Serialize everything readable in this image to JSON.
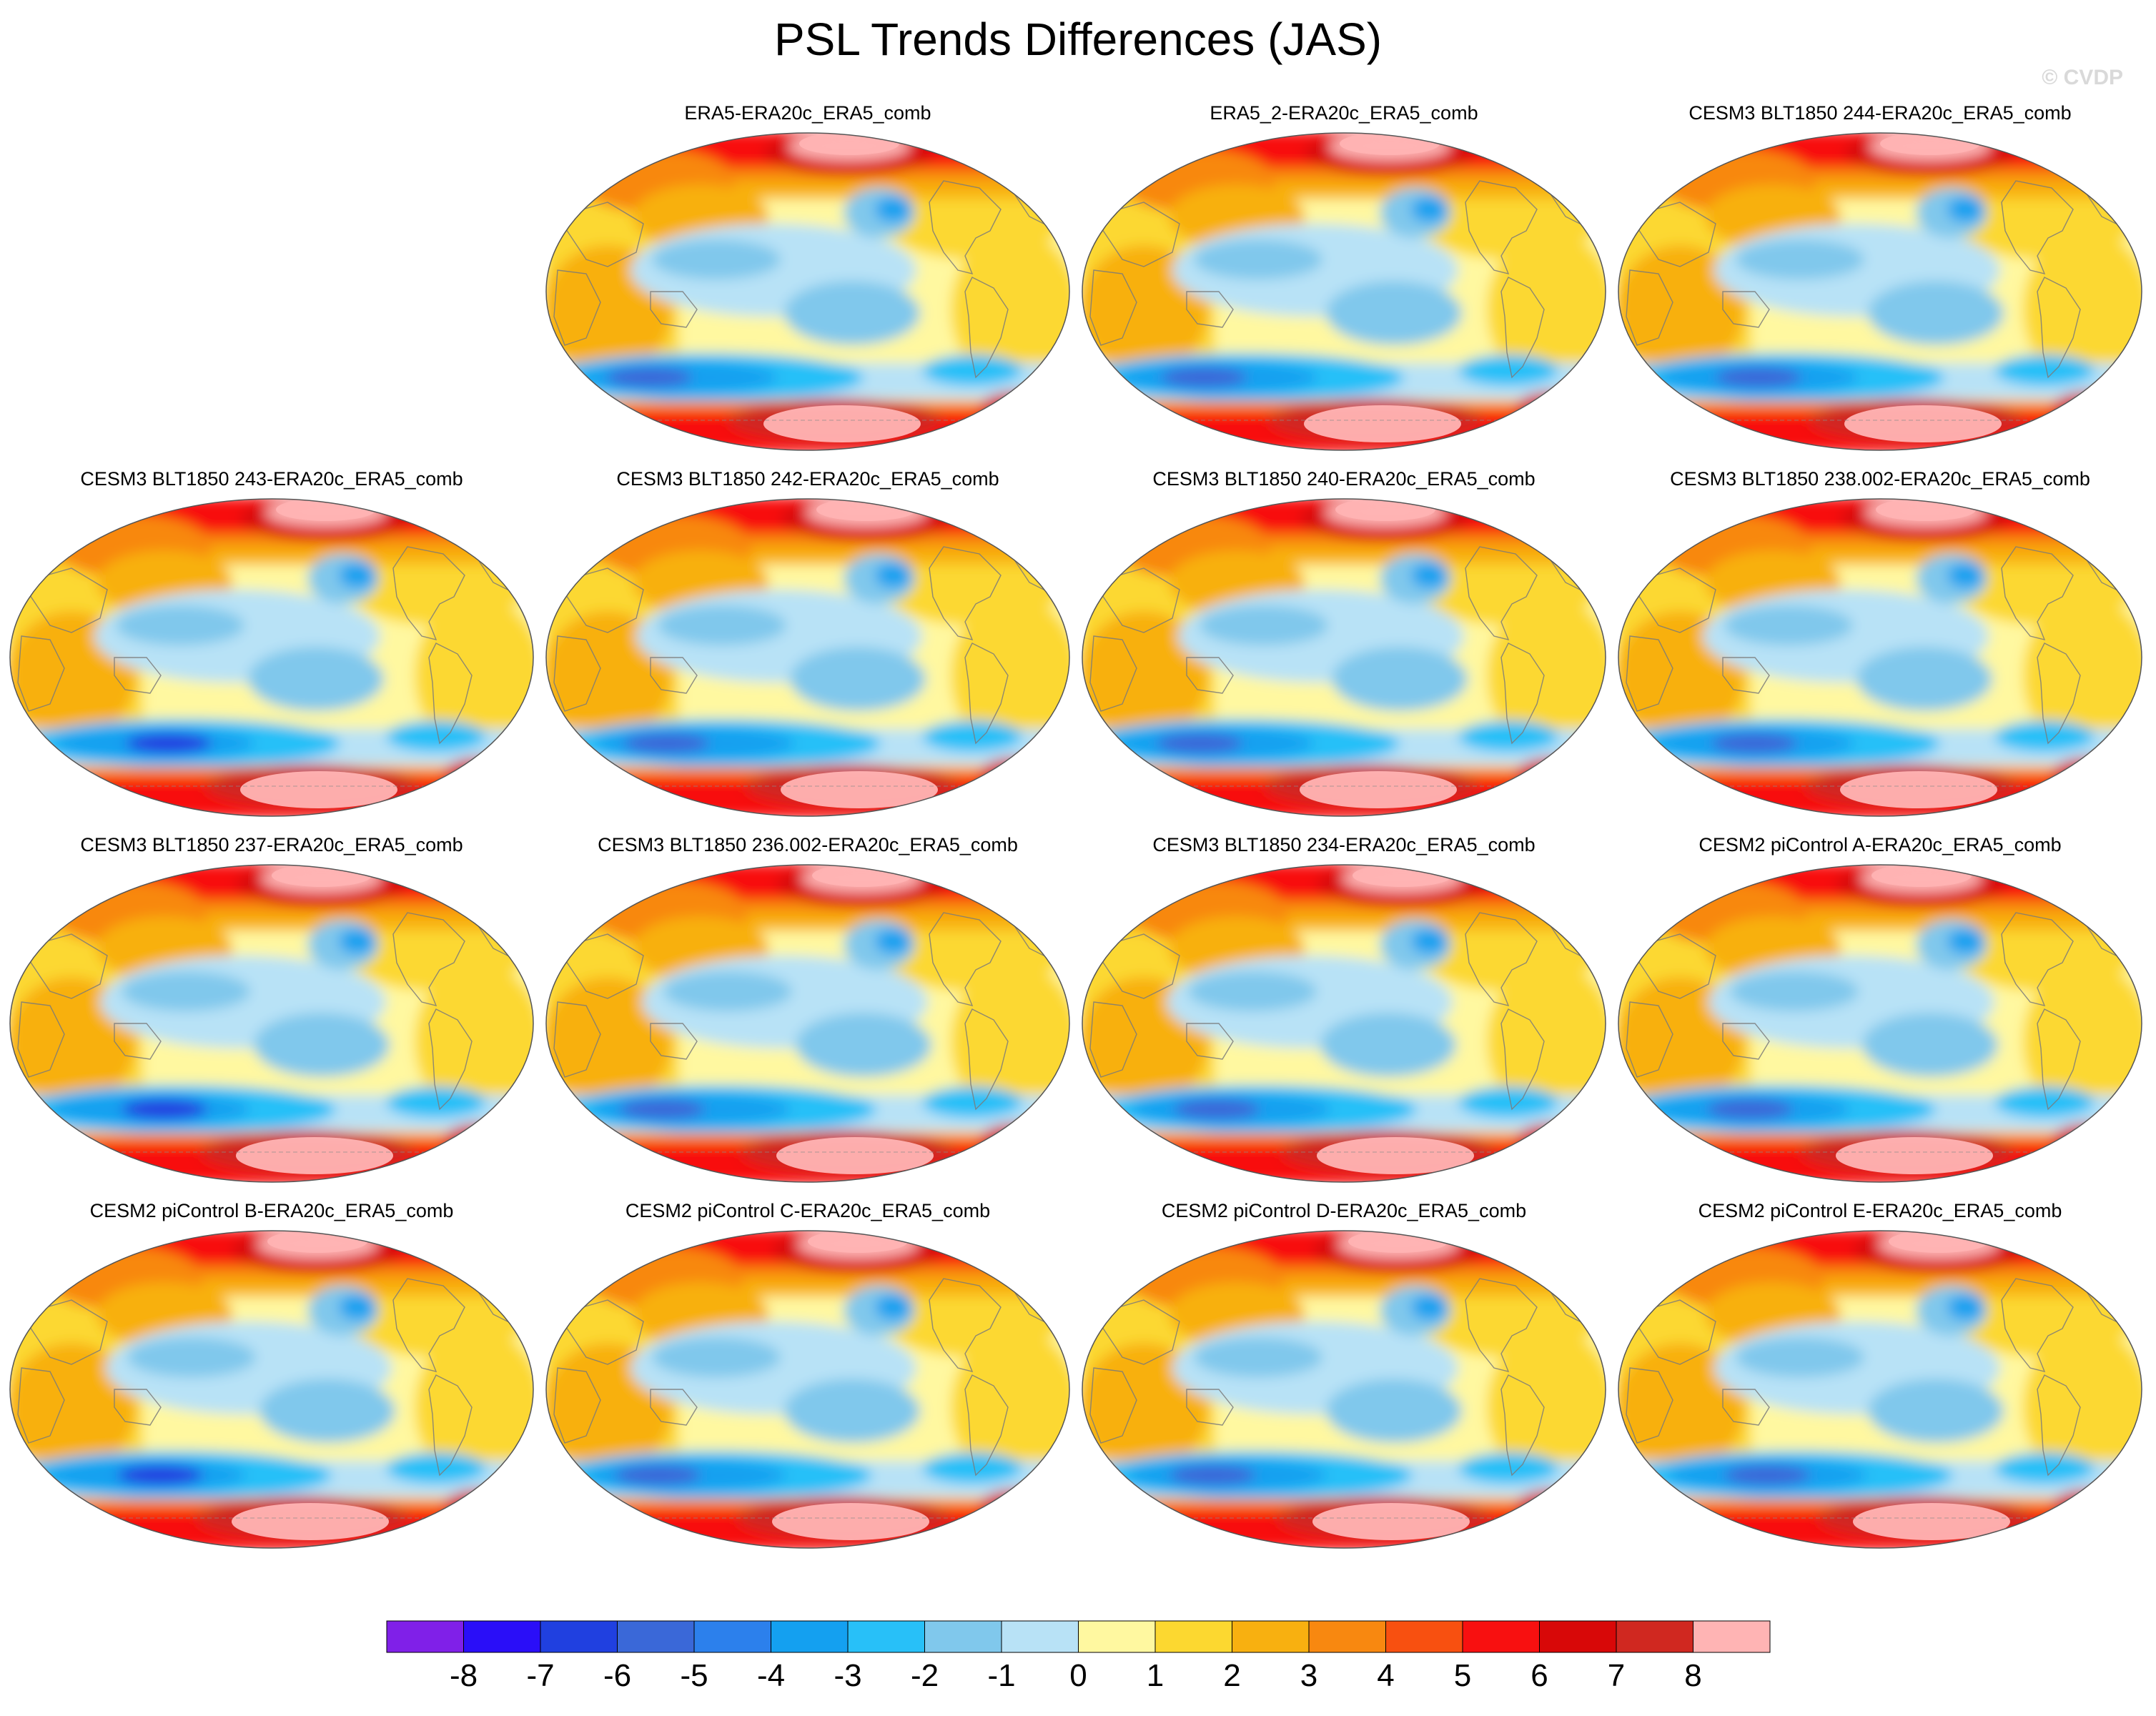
{
  "title": "PSL Trends Differences (JAS)",
  "watermark": "© CVDP",
  "panels": [
    {
      "label": "ERA5-ERA20c_ERA5_comb",
      "pattern": 0
    },
    {
      "label": "ERA5_2-ERA20c_ERA5_comb",
      "pattern": 1
    },
    {
      "label": "CESM3 BLT1850 244-ERA20c_ERA5_comb",
      "pattern": 2
    },
    {
      "label": "CESM3 BLT1850 243-ERA20c_ERA5_comb",
      "pattern": 3
    },
    {
      "label": "CESM3 BLT1850 242-ERA20c_ERA5_comb",
      "pattern": 4
    },
    {
      "label": "CESM3 BLT1850 240-ERA20c_ERA5_comb",
      "pattern": 5
    },
    {
      "label": "CESM3 BLT1850 238.002-ERA20c_ERA5_comb",
      "pattern": 6
    },
    {
      "label": "CESM3 BLT1850 237-ERA20c_ERA5_comb",
      "pattern": 7
    },
    {
      "label": "CESM3 BLT1850 236.002-ERA20c_ERA5_comb",
      "pattern": 8
    },
    {
      "label": "CESM3 BLT1850 234-ERA20c_ERA5_comb",
      "pattern": 9
    },
    {
      "label": "CESM2 piControl A-ERA20c_ERA5_comb",
      "pattern": 10
    },
    {
      "label": "CESM2 piControl B-ERA20c_ERA5_comb",
      "pattern": 11
    },
    {
      "label": "CESM2 piControl C-ERA20c_ERA5_comb",
      "pattern": 12
    },
    {
      "label": "CESM2 piControl D-ERA20c_ERA5_comb",
      "pattern": 13
    },
    {
      "label": "CESM2 piControl E-ERA20c_ERA5_comb",
      "pattern": 14
    }
  ],
  "colorbar": {
    "labels": [
      "-8",
      "-7",
      "-6",
      "-5",
      "-4",
      "-3",
      "-2",
      "-1",
      "0",
      "1",
      "2",
      "3",
      "4",
      "5",
      "6",
      "7",
      "8"
    ],
    "colors": [
      "#8020e8",
      "#2a0ef8",
      "#2040e0",
      "#3a68d8",
      "#2c80ec",
      "#14a0f0",
      "#28c0f8",
      "#80c8ec",
      "#b8e2f6",
      "#fff8a0",
      "#fcd830",
      "#f8b010",
      "#f88810",
      "#f85010",
      "#f81010",
      "#d80808",
      "#d02820",
      "#ffb4b4"
    ]
  }
}
